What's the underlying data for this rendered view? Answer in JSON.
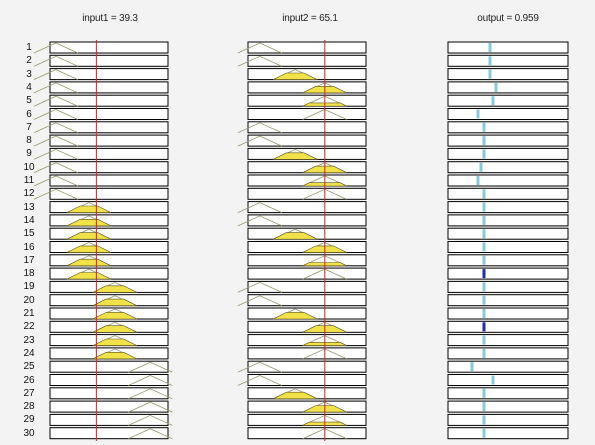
{
  "window": {
    "background": "#f3f3f3"
  },
  "columns": [
    {
      "title": "input1 = 39.3",
      "kind": "input",
      "pointer": 39.3,
      "range": [
        0,
        100
      ]
    },
    {
      "title": "input2 = 65.1",
      "kind": "input",
      "pointer": 65.1,
      "range": [
        0,
        100
      ]
    },
    {
      "title": "output = 0.959",
      "kind": "output",
      "range": [
        0,
        1
      ]
    }
  ],
  "colors": {
    "panel_fill": "#ffffff",
    "panel_border": "#000000",
    "mf_outline": "#9a9a70",
    "mf_fill": "#fffde0",
    "mf_active_fill": "#f2e24a",
    "pointer_line": "#d22020",
    "output_marker": "#88c8dd",
    "output_marker_dark": "#1c2fa8"
  },
  "rules": [
    {
      "n": "1",
      "in1": "low",
      "in2": "low",
      "a1": 0.0,
      "a2": 0.0,
      "out": 0.5
    },
    {
      "n": "2",
      "in1": "low",
      "in2": "low",
      "a1": 0.0,
      "a2": 0.0,
      "out": 0.5
    },
    {
      "n": "3",
      "in1": "low",
      "in2": "mid",
      "a1": 0.0,
      "a2": 0.6,
      "out": 0.5
    },
    {
      "n": "4",
      "in1": "low",
      "in2": "high",
      "a1": 0.0,
      "a2": 0.6,
      "out": 0.6
    },
    {
      "n": "5",
      "in1": "low",
      "in2": "high",
      "a1": 0.0,
      "a2": 0.3,
      "out": 0.55
    },
    {
      "n": "6",
      "in1": "low",
      "in2": "high",
      "a1": 0.0,
      "a2": 0.0,
      "out": 0.3
    },
    {
      "n": "7",
      "in1": "low",
      "in2": "low",
      "a1": 0.0,
      "a2": 0.0,
      "out": 0.4
    },
    {
      "n": "8",
      "in1": "low",
      "in2": "low",
      "a1": 0.0,
      "a2": 0.0,
      "out": 0.4
    },
    {
      "n": "9",
      "in1": "low",
      "in2": "mid",
      "a1": 0.0,
      "a2": 0.6,
      "out": 0.4
    },
    {
      "n": "10",
      "in1": "low",
      "in2": "high",
      "a1": 0.0,
      "a2": 0.6,
      "out": 0.35
    },
    {
      "n": "11",
      "in1": "low",
      "in2": "high",
      "a1": 0.0,
      "a2": 0.3,
      "out": 0.3
    },
    {
      "n": "12",
      "in1": "low",
      "in2": "high",
      "a1": 0.0,
      "a2": 0.0,
      "out": 0.4
    },
    {
      "n": "13",
      "in1": "mid",
      "in2": "low",
      "a1": 0.6,
      "a2": 0.0,
      "out": 0.4
    },
    {
      "n": "14",
      "in1": "mid",
      "in2": "low",
      "a1": 0.6,
      "a2": 0.0,
      "out": 0.4
    },
    {
      "n": "15",
      "in1": "mid",
      "in2": "mid",
      "a1": 0.6,
      "a2": 0.6,
      "out": 0.4
    },
    {
      "n": "16",
      "in1": "mid",
      "in2": "high",
      "a1": 0.6,
      "a2": 0.6,
      "out": 0.4
    },
    {
      "n": "17",
      "in1": "mid",
      "in2": "high",
      "a1": 0.6,
      "a2": 0.3,
      "out": 0.4
    },
    {
      "n": "18",
      "in1": "mid",
      "in2": "high",
      "a1": 0.6,
      "a2": 0.0,
      "out": 0.4
    },
    {
      "n": "19",
      "in1": "high",
      "in2": "low",
      "a1": 0.6,
      "a2": 0.0,
      "out": 0.4
    },
    {
      "n": "20",
      "in1": "high",
      "in2": "low",
      "a1": 0.6,
      "a2": 0.0,
      "out": 0.4
    },
    {
      "n": "21",
      "in1": "high",
      "in2": "mid",
      "a1": 0.6,
      "a2": 0.6,
      "out": 0.4
    },
    {
      "n": "22",
      "in1": "high",
      "in2": "high",
      "a1": 0.6,
      "a2": 0.6,
      "out": 0.4
    },
    {
      "n": "23",
      "in1": "high",
      "in2": "high",
      "a1": 0.6,
      "a2": 0.3,
      "out": 0.4
    },
    {
      "n": "24",
      "in1": "high",
      "in2": "high",
      "a1": 0.6,
      "a2": 0.0,
      "out": 0.4
    },
    {
      "n": "25",
      "in1": "vhigh",
      "in2": "low",
      "a1": 0.0,
      "a2": 0.0,
      "out": 0.2
    },
    {
      "n": "26",
      "in1": "vhigh",
      "in2": "low",
      "a1": 0.0,
      "a2": 0.0,
      "out": 0.55
    },
    {
      "n": "27",
      "in1": "vhigh",
      "in2": "mid",
      "a1": 0.0,
      "a2": 0.6,
      "out": 0.4
    },
    {
      "n": "28",
      "in1": "vhigh",
      "in2": "high",
      "a1": 0.0,
      "a2": 0.6,
      "out": 0.4
    },
    {
      "n": "29",
      "in1": "vhigh",
      "in2": "high",
      "a1": 0.0,
      "a2": 0.3,
      "out": 0.4
    },
    {
      "n": "30",
      "in1": "vhigh",
      "in2": "high",
      "a1": 0.0,
      "a2": 0.0,
      "out": 0.4
    }
  ],
  "mf_centers": {
    "low": 5,
    "mid": 33,
    "high": 55,
    "vhigh": 85
  },
  "mf_centers_in2": {
    "low": 10,
    "mid": 40,
    "high": 65
  }
}
